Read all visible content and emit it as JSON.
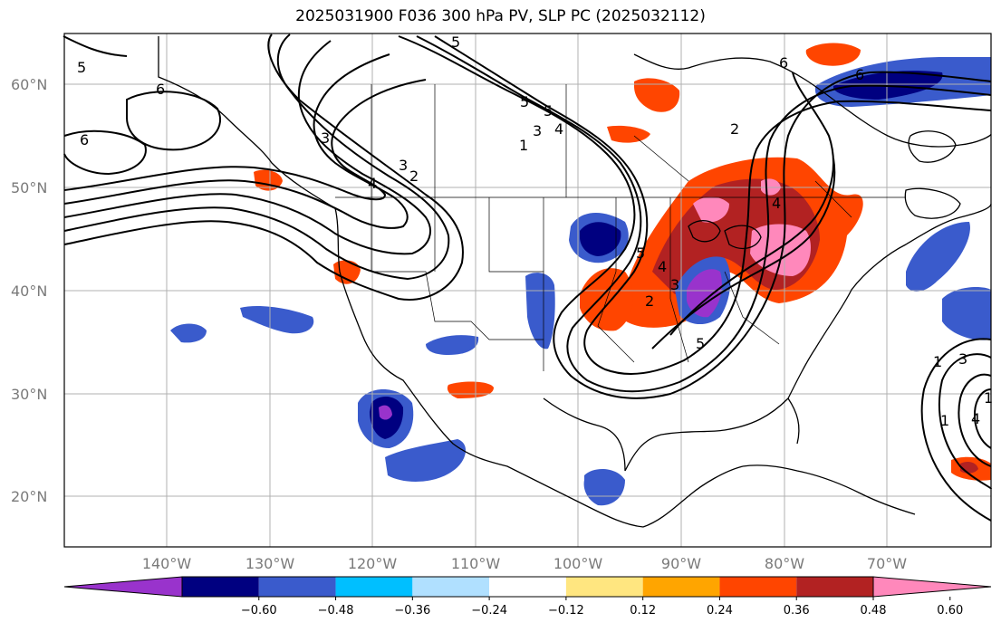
{
  "title": "2025031900 F036 300 hPa PV, SLP PC (2025032112)",
  "lat_labels": [
    "60°N",
    "50°N",
    "40°N",
    "30°N",
    "20°N"
  ],
  "lon_labels": [
    "140°W",
    "130°W",
    "120°W",
    "110°W",
    "100°W",
    "90°W",
    "80°W",
    "70°W"
  ],
  "colorbar": {
    "ticks": [
      "−0.60",
      "−0.48",
      "−0.36",
      "−0.24",
      "−0.12",
      "0.12",
      "0.24",
      "0.36",
      "0.48",
      "0.60"
    ],
    "colors": [
      "#9933cc",
      "#000080",
      "#3a5bcc",
      "#00bfff",
      "#b0e0ff",
      "#ffffff",
      "#ffe680",
      "#ffa500",
      "#ff4500",
      "#b22222",
      "#ff88bb"
    ]
  },
  "contour_labels": [
    "5",
    "6",
    "5",
    "6",
    "6",
    "5",
    "5",
    "4",
    "3",
    "2",
    "1",
    "3",
    "2",
    "4",
    "4",
    "3",
    "2",
    "1",
    "5",
    "6",
    "1",
    "3",
    "4",
    "1",
    "5",
    "4",
    "3"
  ]
}
